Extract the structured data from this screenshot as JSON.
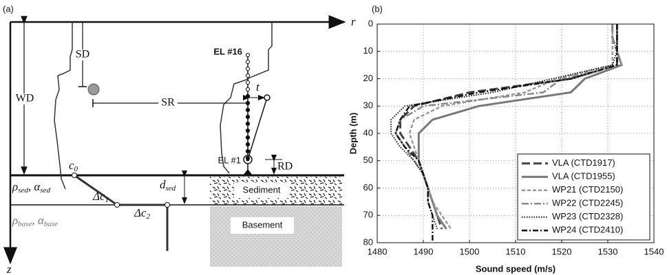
{
  "diagram": {
    "label": "(a)",
    "r_axis": "r",
    "z_axis": "z",
    "sd": "SD",
    "wd": "WD",
    "sr": "SR",
    "el16": "EL #16",
    "el1": "EL #1",
    "tilt": "t",
    "rd": "RD",
    "c0": {
      "main": "c",
      "sub": "0"
    },
    "dc1": {
      "main": "Δc",
      "sub": "1"
    },
    "dc2": {
      "main": "Δc",
      "sub": "2"
    },
    "dsed": {
      "main": "d",
      "sub": "sed"
    },
    "sed_params": {
      "rho": "ρ",
      "rho_sub": "sed",
      "sep": ", ",
      "alpha": "α",
      "alpha_sub": "sed"
    },
    "base_params": {
      "rho": "ρ",
      "rho_sub": "base",
      "sep": ", ",
      "alpha": "α",
      "alpha_sub": "base"
    },
    "sediment": "Sediment",
    "basement": "Basement"
  },
  "chart_data": {
    "type": "line",
    "label": "(b)",
    "xlabel": "Sound speed (m/s)",
    "ylabel": "Depth (m)",
    "xlim": [
      1480,
      1540
    ],
    "xticks": [
      1480,
      1490,
      1500,
      1510,
      1520,
      1530,
      1540
    ],
    "ylim": [
      80,
      0
    ],
    "yticks": [
      0,
      10,
      20,
      30,
      40,
      50,
      60,
      70,
      80
    ],
    "grid": true,
    "legend": "lower right",
    "y": [
      0,
      5,
      10,
      15,
      20,
      25,
      30,
      35,
      40,
      45,
      50,
      55,
      60,
      65,
      70,
      75,
      80
    ],
    "series": [
      {
        "name": "VLA (CTD1917)",
        "color": "#444444",
        "dash": "12 5",
        "width": 3,
        "values": [
          1531,
          1531,
          1532,
          1532,
          1522,
          1500,
          1488,
          1485,
          1485,
          1487,
          1489,
          1490,
          1491,
          1492,
          1493,
          1494,
          null
        ]
      },
      {
        "name": "VLA (CTD1955)",
        "color": "#777777",
        "dash": "none",
        "width": 3,
        "values": [
          1532,
          1532,
          1532,
          1533,
          1525,
          1522,
          1502,
          1492,
          1489,
          1489,
          1489,
          1490,
          1491,
          1492,
          1493,
          1495,
          null
        ]
      },
      {
        "name": "WP21 (CTD2150)",
        "color": "#999999",
        "dash": "5 3",
        "width": 2.5,
        "values": [
          1531,
          1531,
          1531,
          1531,
          1519,
          1512,
          1494,
          1488,
          1487,
          1488,
          1489,
          1490,
          1491,
          1492,
          1494,
          1496,
          null
        ]
      },
      {
        "name": "WP22 (CTD2245)",
        "color": "#888888",
        "dash": "10 3 2 3",
        "width": 2.5,
        "values": [
          1531,
          1531,
          1532,
          1533,
          1520,
          1516,
          1490,
          1485,
          1484,
          1486,
          1488,
          1490,
          1491,
          1492,
          1493,
          1495,
          null
        ]
      },
      {
        "name": "WP23 (CTD2328)",
        "color": "#111111",
        "dash": "1.5 2",
        "width": 2,
        "values": [
          1532,
          1532,
          1532,
          1531,
          1518,
          1505,
          1486,
          1483,
          1483,
          1485,
          1488,
          1490,
          1491,
          1491,
          1492,
          1493,
          null
        ]
      },
      {
        "name": "WP24 (CTD2410)",
        "color": "#111111",
        "dash": "8 3 2 3",
        "width": 2.5,
        "values": [
          1532,
          1532,
          1532,
          1532,
          1522,
          1502,
          1487,
          1485,
          1484,
          1486,
          1489,
          1490,
          1491,
          1491,
          1492,
          1492,
          1492
        ]
      }
    ]
  }
}
